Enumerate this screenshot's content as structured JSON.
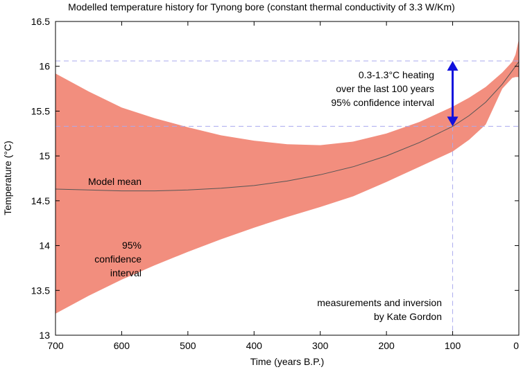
{
  "chart_data": {
    "type": "area",
    "title": "Modelled temperature history for Tynong bore (constant thermal conductivity of 3.3 W/Km)",
    "xlabel": "Time (years B.P.)",
    "ylabel": "Temperature (°C)",
    "xlim": [
      700,
      0
    ],
    "ylim": [
      13,
      16.5
    ],
    "x_ticks": [
      "700",
      "600",
      "500",
      "400",
      "300",
      "200",
      "100",
      "0"
    ],
    "y_ticks": [
      "13",
      "13.5",
      "14",
      "14.5",
      "15",
      "15.5",
      "16",
      "16.5"
    ],
    "x_tick_values": [
      700,
      600,
      500,
      400,
      300,
      200,
      100,
      0
    ],
    "y_tick_values": [
      13,
      13.5,
      14,
      14.5,
      15,
      15.5,
      16,
      16.5
    ],
    "grid": false,
    "series": [
      {
        "name": "Model mean",
        "style": "line",
        "x": [
          700,
          650,
          600,
          550,
          500,
          450,
          400,
          350,
          300,
          250,
          200,
          150,
          100,
          75,
          50,
          25,
          10,
          0
        ],
        "y": [
          14.63,
          14.62,
          14.61,
          14.61,
          14.62,
          14.64,
          14.67,
          14.72,
          14.79,
          14.88,
          15.0,
          15.15,
          15.33,
          15.45,
          15.6,
          15.8,
          15.95,
          16.05
        ]
      },
      {
        "name": "95% confidence interval upper",
        "style": "band-upper",
        "x": [
          700,
          650,
          600,
          550,
          500,
          450,
          400,
          350,
          300,
          250,
          200,
          150,
          100,
          75,
          50,
          25,
          10,
          5,
          0
        ],
        "y": [
          15.92,
          15.72,
          15.54,
          15.42,
          15.32,
          15.23,
          15.17,
          15.13,
          15.12,
          15.16,
          15.25,
          15.38,
          15.55,
          15.65,
          15.77,
          15.93,
          16.05,
          16.13,
          16.3
        ]
      },
      {
        "name": "95% confidence interval lower",
        "style": "band-lower",
        "x": [
          700,
          650,
          600,
          550,
          500,
          450,
          400,
          350,
          300,
          250,
          200,
          150,
          100,
          75,
          50,
          25,
          10,
          5,
          0
        ],
        "y": [
          13.24,
          13.44,
          13.62,
          13.78,
          13.93,
          14.07,
          14.2,
          14.32,
          14.43,
          14.55,
          14.71,
          14.88,
          15.05,
          15.18,
          15.35,
          15.75,
          15.87,
          15.88,
          15.88
        ]
      }
    ],
    "reference_lines": {
      "x": [
        100
      ],
      "y": [
        15.33,
        16.06
      ]
    },
    "arrow": {
      "x": 100,
      "y_from": 15.33,
      "y_to": 16.06
    },
    "colors": {
      "band": "#f28e7e",
      "mean_line": "#555555",
      "reference": "#aaaaee",
      "arrow": "#1010dd"
    },
    "annotations": {
      "heating": [
        "0.3-1.3°C heating",
        "over the last 100 years",
        "95% confidence interval"
      ],
      "model_mean": "Model mean",
      "confidence": [
        "95%",
        "confidence",
        "interval"
      ],
      "credit": [
        "measurements and inversion",
        "by Kate Gordon"
      ]
    }
  }
}
